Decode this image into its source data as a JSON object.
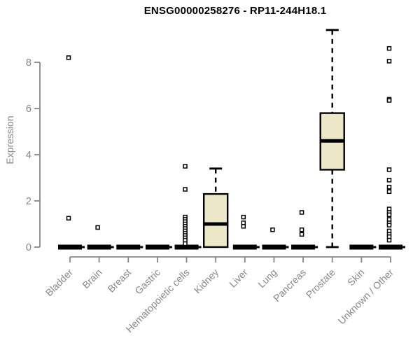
{
  "window": {
    "background": "#ffffff"
  },
  "chart_data": {
    "type": "boxplot",
    "title": "ENSG00000258276 - RP11-244H18.1",
    "ylabel": "Expression",
    "xlabel": "",
    "ylim": [
      0,
      9.4
    ],
    "yticks": [
      0,
      2,
      4,
      6,
      8
    ],
    "grid": false,
    "legend": null,
    "colors": {
      "box_fill": "#ece7c8",
      "box_border": "#000000",
      "median": "#000000",
      "axis": "#878787",
      "tick_label": "#878787",
      "title": "#000000",
      "outlier_fill": "#ffffff"
    },
    "categories": [
      "Bladder",
      "Brain",
      "Breast",
      "Gastric",
      "Hematopoietic cells",
      "Kidney",
      "Liver",
      "Lung",
      "Pancreas",
      "Prostate",
      "Skin",
      "Unknown / Other"
    ],
    "series": [
      {
        "category": "Bladder",
        "q1": 0,
        "median": 0,
        "q3": 0,
        "whisker_low": 0,
        "whisker_high": 0,
        "outliers": [
          8.2,
          1.25
        ]
      },
      {
        "category": "Brain",
        "q1": 0,
        "median": 0,
        "q3": 0,
        "whisker_low": 0,
        "whisker_high": 0,
        "outliers": [
          0.85
        ]
      },
      {
        "category": "Breast",
        "q1": 0,
        "median": 0,
        "q3": 0,
        "whisker_low": 0,
        "whisker_high": 0,
        "outliers": []
      },
      {
        "category": "Gastric",
        "q1": 0,
        "median": 0,
        "q3": 0,
        "whisker_low": 0,
        "whisker_high": 0,
        "outliers": []
      },
      {
        "category": "Hematopoietic cells",
        "q1": 0,
        "median": 0,
        "q3": 0,
        "whisker_low": 0,
        "whisker_high": 0,
        "outliers": [
          3.5,
          2.5,
          1.3,
          1.2,
          1.1,
          1.0,
          0.9,
          0.8,
          0.7,
          0.6,
          0.5,
          0.4,
          0.3,
          0.15
        ]
      },
      {
        "category": "Kidney",
        "q1": 0,
        "median": 1.0,
        "q3": 2.3,
        "whisker_low": 0,
        "whisker_high": 3.4,
        "outliers": []
      },
      {
        "category": "Liver",
        "q1": 0,
        "median": 0,
        "q3": 0,
        "whisker_low": 0,
        "whisker_high": 0,
        "outliers": [
          1.3,
          1.05,
          0.9
        ]
      },
      {
        "category": "Lung",
        "q1": 0,
        "median": 0,
        "q3": 0,
        "whisker_low": 0,
        "whisker_high": 0,
        "outliers": [
          0.75
        ]
      },
      {
        "category": "Pancreas",
        "q1": 0,
        "median": 0,
        "q3": 0,
        "whisker_low": 0,
        "whisker_high": 0,
        "outliers": [
          1.5,
          0.75,
          0.55
        ]
      },
      {
        "category": "Prostate",
        "q1": 3.35,
        "median": 4.6,
        "q3": 5.8,
        "whisker_low": 0,
        "whisker_high": 9.4,
        "outliers": []
      },
      {
        "category": "Skin",
        "q1": 0,
        "median": 0,
        "q3": 0,
        "whisker_low": 0,
        "whisker_high": 0,
        "outliers": []
      },
      {
        "category": "Unknown / Other",
        "q1": 0,
        "median": 0,
        "q3": 0,
        "whisker_low": 0,
        "whisker_high": 0,
        "outliers": [
          8.6,
          8.05,
          6.4,
          6.35,
          3.35,
          2.9,
          2.6,
          2.4,
          1.65,
          1.5,
          1.4,
          1.2,
          1.05,
          0.95,
          0.7,
          0.55,
          0.45,
          0.3
        ]
      }
    ]
  }
}
